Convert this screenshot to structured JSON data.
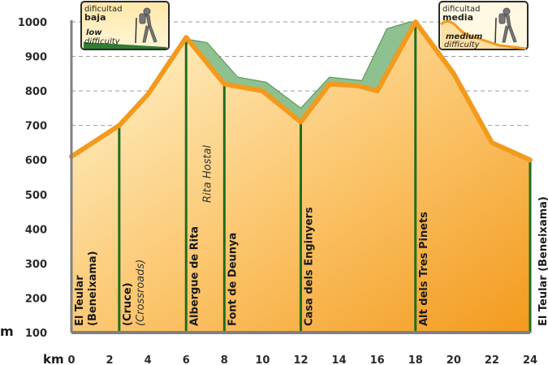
{
  "chart_data": {
    "type": "area",
    "xlabel": "km",
    "ylabel": "m",
    "xlim": [
      0,
      24
    ],
    "ylim": [
      100,
      1000
    ],
    "x_ticks": [
      "0",
      "2",
      "4",
      "6",
      "8",
      "10",
      "12",
      "14",
      "16",
      "18",
      "20",
      "22",
      "24"
    ],
    "y_ticks": [
      "100",
      "200",
      "300",
      "400",
      "500",
      "600",
      "700",
      "800",
      "900",
      "1000"
    ],
    "grid": "horizontal-dashed",
    "series": [
      {
        "color": "#f39a1d",
        "x": [
          0,
          2.5,
          4,
          6,
          8,
          10,
          12,
          13.5,
          15,
          16,
          18,
          20,
          22,
          24
        ],
        "y": [
          610,
          700,
          790,
          955,
          820,
          800,
          710,
          820,
          815,
          800,
          1000,
          850,
          650,
          600
        ]
      },
      {
        "color": "#8fc08f",
        "x": [
          6,
          7.1,
          8.7,
          10.2,
          12,
          13.5,
          15.2,
          16.5,
          17.7
        ],
        "y": [
          950,
          940,
          840,
          825,
          750,
          840,
          830,
          980,
          1000
        ]
      }
    ],
    "waypoints": [
      {
        "km": 0,
        "label": "El Teular\n(Beneixama)"
      },
      {
        "km": 2.5,
        "label": "(Cruce)",
        "sublabel": "(Crossroads)"
      },
      {
        "km": 6,
        "label": "Albergue de Rita",
        "sublabel": "Rita Hostal"
      },
      {
        "km": 8,
        "label": "Font de Deunya"
      },
      {
        "km": 12,
        "label": "Casa dels Enginyers"
      },
      {
        "km": 18,
        "label": "Alt dels Tres Pinets"
      },
      {
        "km": 24,
        "label": "El Teular (Beneixama)"
      }
    ]
  },
  "legends": {
    "low": {
      "title_es": "dificultad",
      "level_es": "baja",
      "level_en_1": "low",
      "level_en_2": "difficulty"
    },
    "medium": {
      "title_es": "dificultad",
      "level_es": "media",
      "level_en_1": "medium",
      "level_en_2": "difficulty"
    }
  },
  "colors": {
    "fill_light": "#fff3c8",
    "fill_dark": "#f39a1d",
    "line": "#f39a1d",
    "green": "#8fc08f",
    "marker": "#1e6e1e",
    "axis": "#808080"
  }
}
